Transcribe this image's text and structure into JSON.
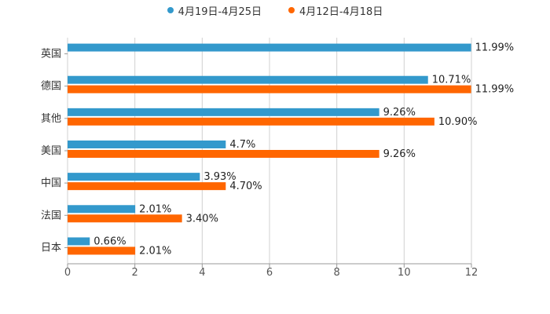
{
  "chart_data": {
    "type": "bar",
    "orientation": "horizontal",
    "categories": [
      "英国",
      "德国",
      "其他",
      "美国",
      "中国",
      "法国",
      "日本"
    ],
    "series": [
      {
        "name": "4月19日-4月25日",
        "color": "#3399cc",
        "values": [
          11.99,
          10.71,
          9.26,
          4.7,
          3.93,
          2.01,
          0.66
        ],
        "labels": [
          "11.99%",
          "10.71%",
          "9.26%",
          "4.7%",
          "3.93%",
          "2.01%",
          "0.66%"
        ]
      },
      {
        "name": "4月12日-4月18日",
        "color": "#ff6600",
        "values": [
          null,
          11.99,
          10.9,
          9.26,
          4.7,
          3.4,
          2.01
        ],
        "labels": [
          null,
          "11.99%",
          "10.90%",
          "9.26%",
          "4.70%",
          "3.40%",
          "2.01%"
        ]
      }
    ],
    "xlim": [
      0,
      12
    ],
    "xticks": [
      "0",
      "2",
      "4",
      "6",
      "8",
      "10",
      "12"
    ],
    "grid": true,
    "legend_position": "top-center",
    "title": "",
    "xlabel": "",
    "ylabel": ""
  }
}
